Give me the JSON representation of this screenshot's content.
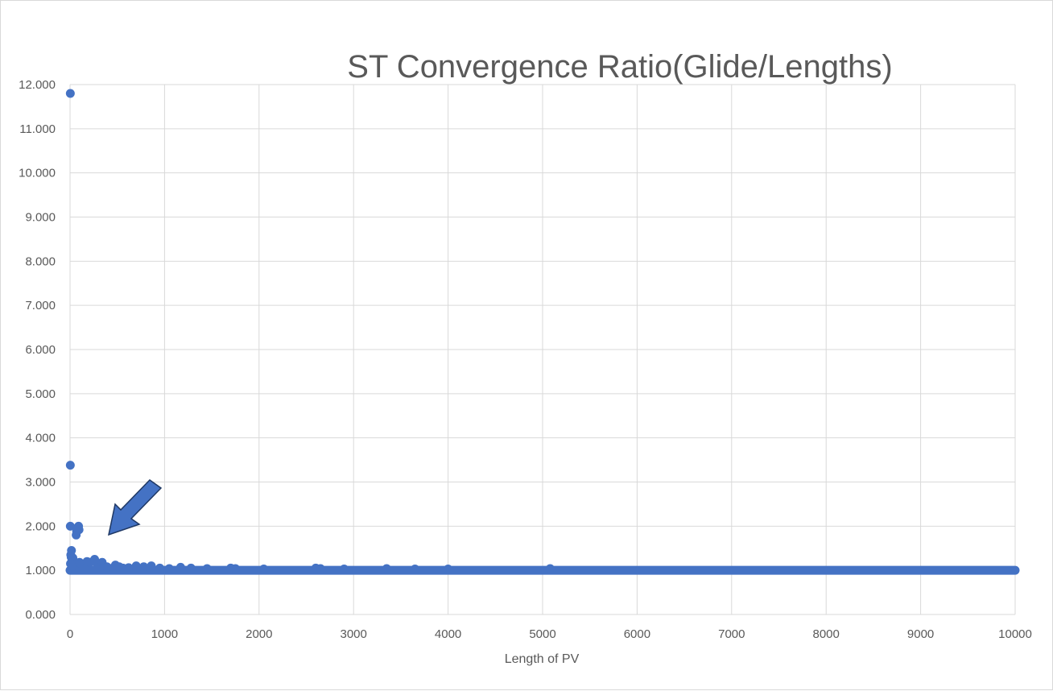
{
  "colors": {
    "series": "#4472c4",
    "arrow_fill": "#4472c4",
    "arrow_stroke": "#1f3864",
    "grid": "#d9d9d9",
    "text": "#595959"
  },
  "chart_data": {
    "type": "scatter",
    "title": "ST Convergence Ratio(Glide/Lengths)",
    "xlabel": "Length of PV",
    "ylabel": "",
    "xlim": [
      0,
      10000
    ],
    "ylim": [
      0,
      12
    ],
    "x_ticks": [
      "0",
      "1000",
      "2000",
      "3000",
      "4000",
      "5000",
      "6000",
      "7000",
      "8000",
      "9000",
      "10000"
    ],
    "y_ticks": [
      "0.000",
      "1.000",
      "2.000",
      "3.000",
      "4.000",
      "5.000",
      "6.000",
      "7.000",
      "8.000",
      "9.000",
      "10.000",
      "11.000",
      "12.000"
    ],
    "grid": true,
    "legend": "none",
    "annotation": "arrow pointing at the cluster of points near x≈100, y≈1.5",
    "series": [
      {
        "points": [
          [
            3,
            11.8
          ],
          [
            3,
            3.38
          ],
          [
            3,
            2.0
          ],
          [
            15,
            1.45
          ],
          [
            8,
            1.35
          ],
          [
            12,
            1.3
          ],
          [
            30,
            1.28
          ],
          [
            20,
            1.22
          ],
          [
            40,
            1.18
          ],
          [
            5,
            1.15
          ],
          [
            60,
            1.12
          ],
          [
            25,
            1.1
          ],
          [
            65,
            1.8
          ],
          [
            70,
            1.88
          ],
          [
            80,
            1.95
          ],
          [
            90,
            2.0
          ],
          [
            95,
            1.92
          ],
          [
            100,
            1.18
          ],
          [
            120,
            1.15
          ],
          [
            150,
            1.12
          ],
          [
            180,
            1.2
          ],
          [
            210,
            1.18
          ],
          [
            260,
            1.25
          ],
          [
            290,
            1.12
          ],
          [
            340,
            1.18
          ],
          [
            390,
            1.08
          ],
          [
            450,
            1.05
          ],
          [
            480,
            1.12
          ],
          [
            520,
            1.08
          ],
          [
            560,
            1.05
          ],
          [
            620,
            1.06
          ],
          [
            700,
            1.1
          ],
          [
            780,
            1.08
          ],
          [
            860,
            1.1
          ],
          [
            950,
            1.05
          ],
          [
            1050,
            1.04
          ],
          [
            1170,
            1.07
          ],
          [
            1280,
            1.05
          ],
          [
            1450,
            1.04
          ],
          [
            1700,
            1.05
          ],
          [
            1750,
            1.04
          ],
          [
            2050,
            1.03
          ],
          [
            2600,
            1.05
          ],
          [
            2650,
            1.04
          ],
          [
            2900,
            1.03
          ],
          [
            3350,
            1.04
          ],
          [
            3650,
            1.03
          ],
          [
            4000,
            1.03
          ],
          [
            5080,
            1.04
          ]
        ],
        "baseline": {
          "value": 1.0,
          "x_start": 0,
          "x_end": 10000
        }
      }
    ]
  }
}
